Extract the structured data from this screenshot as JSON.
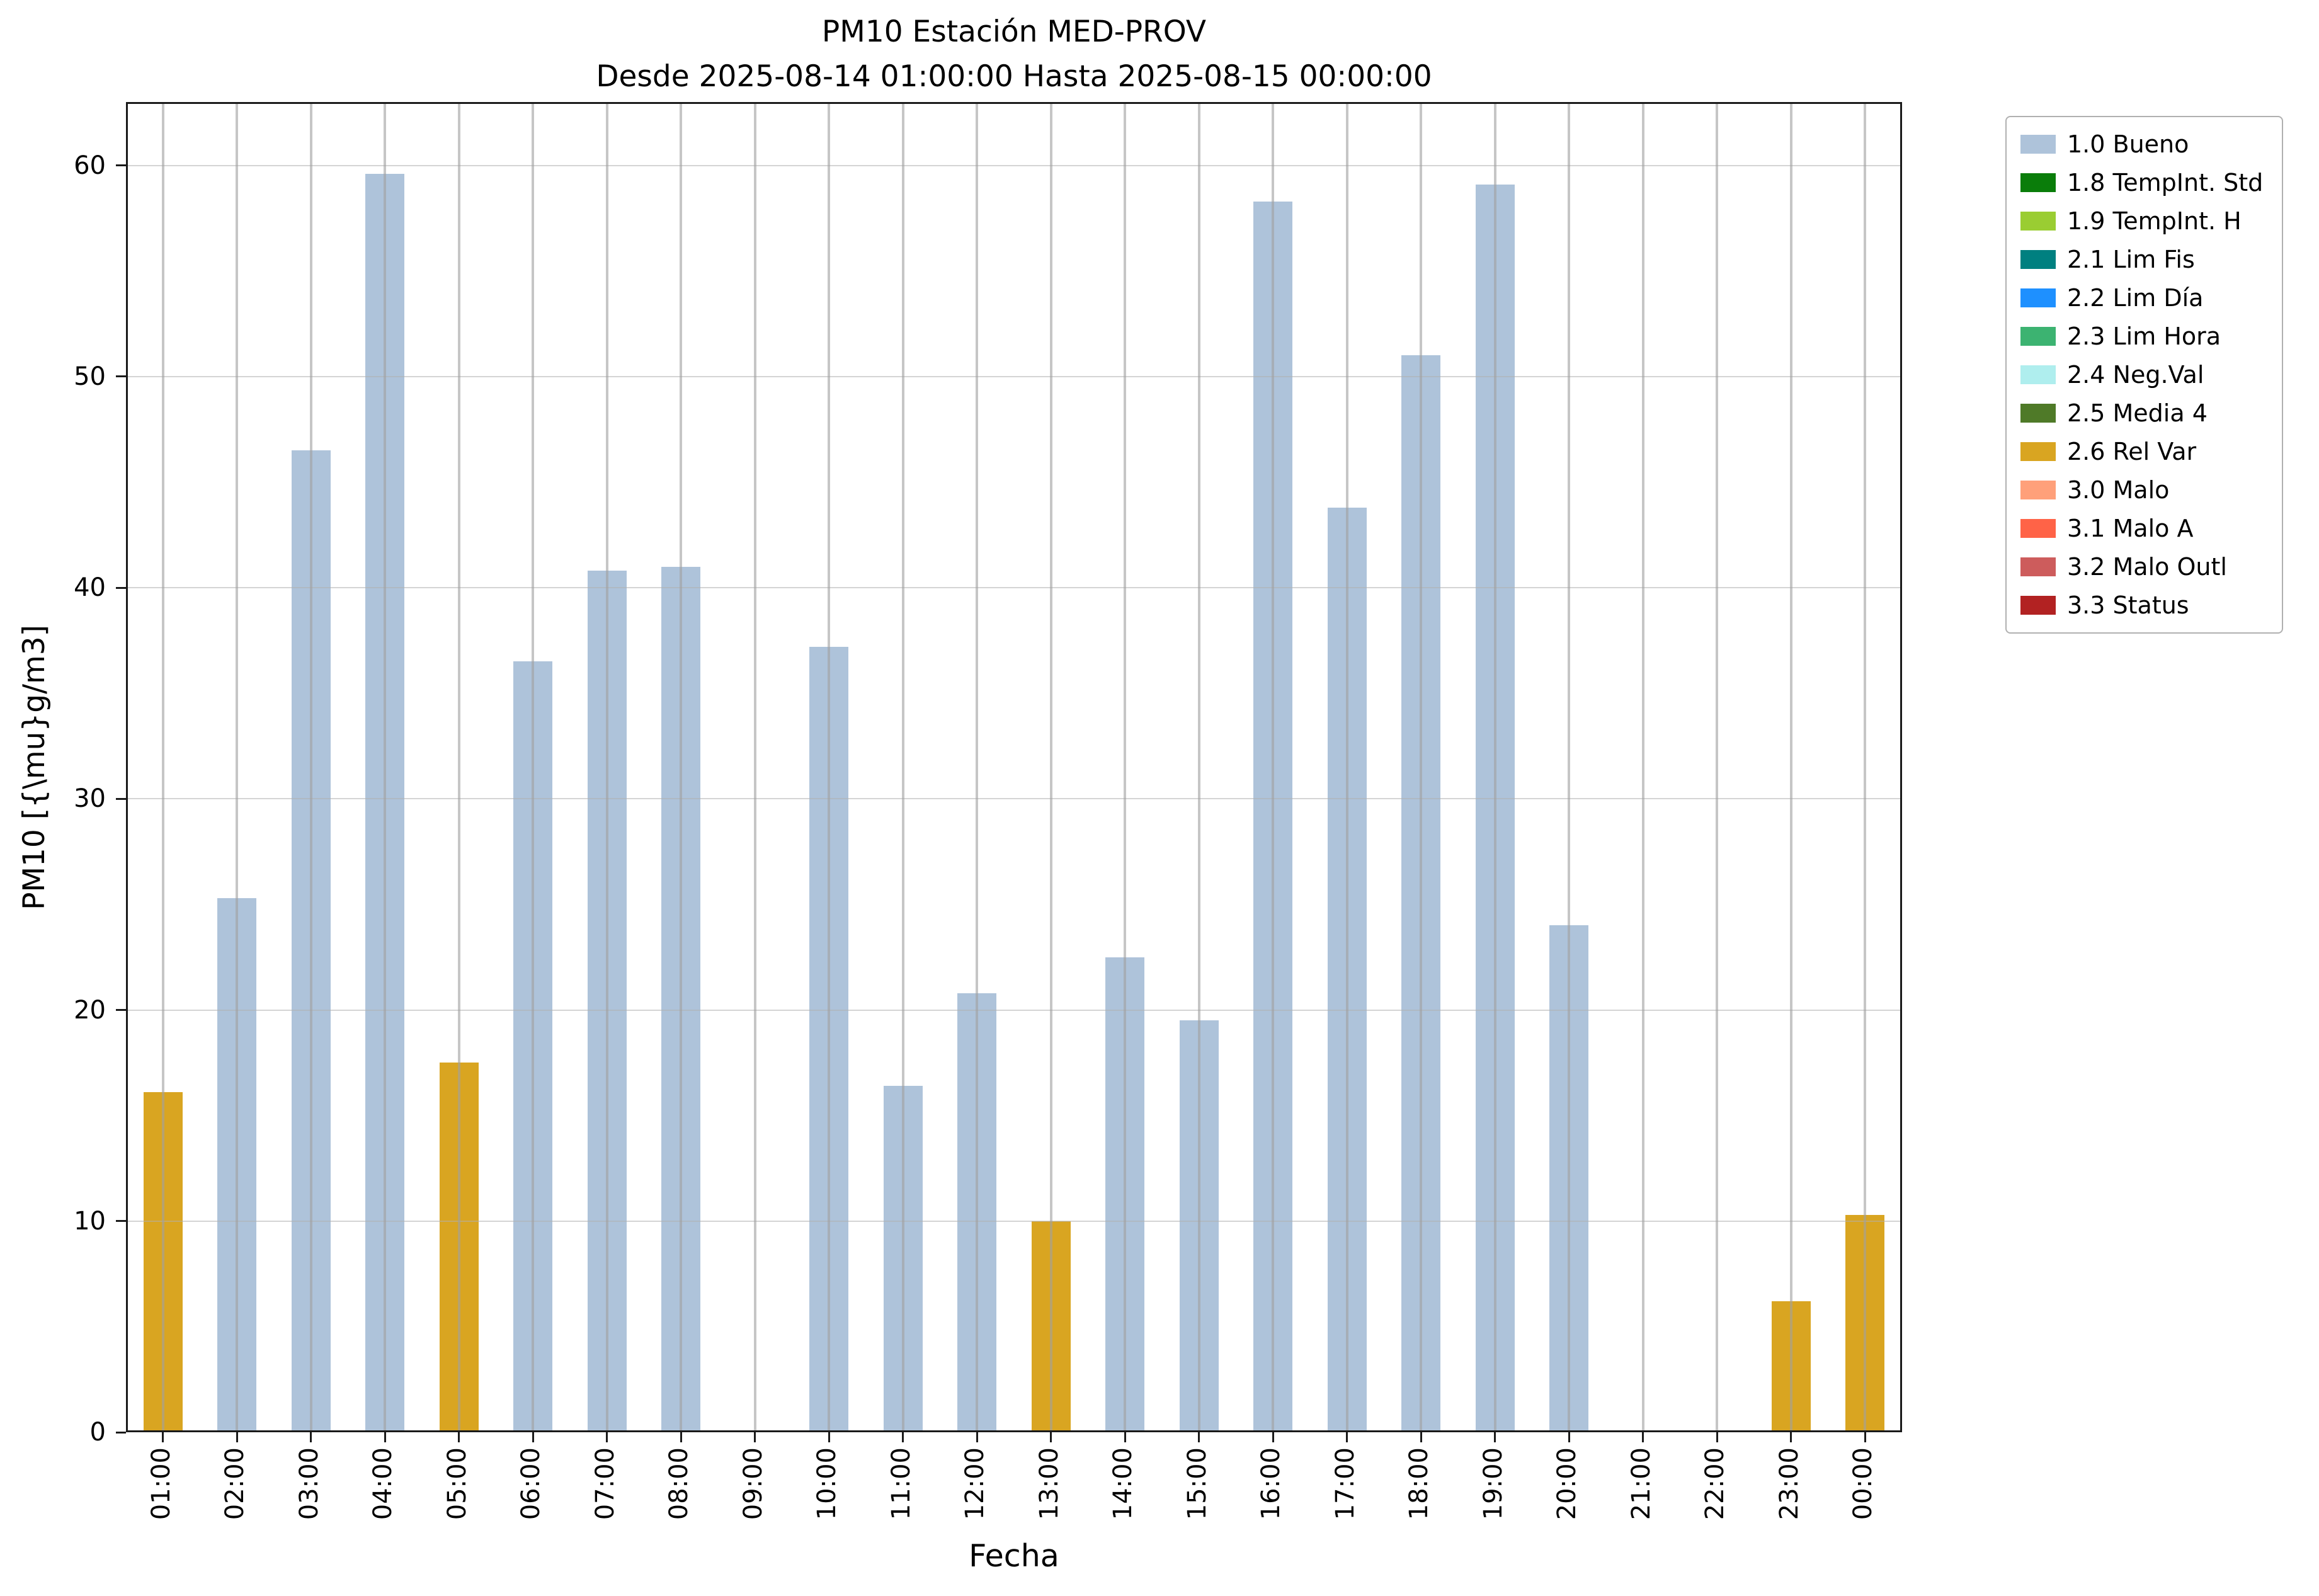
{
  "chart_data": {
    "type": "bar",
    "title": "PM10 Estación MED-PROV",
    "subtitle": "Desde 2025-08-14 01:00:00 Hasta 2025-08-15 00:00:00",
    "xlabel": "Fecha",
    "ylabel": "PM10 [{\\mu}g/m3]",
    "ylim": [
      0,
      63
    ],
    "yticks": [
      0,
      10,
      20,
      30,
      40,
      50,
      60
    ],
    "grid": "both",
    "legend_position": "outside-top-right",
    "categories": [
      "01:00",
      "02:00",
      "03:00",
      "04:00",
      "05:00",
      "06:00",
      "07:00",
      "08:00",
      "09:00",
      "10:00",
      "11:00",
      "12:00",
      "13:00",
      "14:00",
      "15:00",
      "16:00",
      "17:00",
      "18:00",
      "19:00",
      "20:00",
      "21:00",
      "22:00",
      "23:00",
      "00:00"
    ],
    "values": [
      16.1,
      25.3,
      46.5,
      59.6,
      17.5,
      36.5,
      40.8,
      41.0,
      0,
      37.2,
      16.4,
      20.8,
      10.0,
      22.5,
      19.5,
      58.3,
      43.8,
      51.0,
      59.1,
      24.0,
      0,
      0,
      6.2,
      10.3
    ],
    "statuses": [
      "2.6 Rel Var",
      "1.0 Bueno",
      "1.0 Bueno",
      "1.0 Bueno",
      "2.6 Rel Var",
      "1.0 Bueno",
      "1.0 Bueno",
      "1.0 Bueno",
      null,
      "1.0 Bueno",
      "1.0 Bueno",
      "1.0 Bueno",
      "2.6 Rel Var",
      "1.0 Bueno",
      "1.0 Bueno",
      "1.0 Bueno",
      "1.0 Bueno",
      "1.0 Bueno",
      "1.0 Bueno",
      "1.0 Bueno",
      null,
      null,
      "2.6 Rel Var",
      "2.6 Rel Var"
    ],
    "legend": [
      "1.0 Bueno",
      "1.8 TempInt. Std",
      "1.9 TempInt. H",
      "2.1 Lim Fis",
      "2.2 Lim Día",
      "2.3 Lim Hora",
      "2.4 Neg.Val",
      "2.5 Media 4",
      "2.6 Rel Var",
      "3.0 Malo",
      "3.1 Malo A",
      "3.2 Malo Outl",
      "3.3 Status"
    ],
    "colors": {
      "1.0 Bueno": "#aec3da",
      "1.8 TempInt. Std": "#0a7d0a",
      "1.9 TempInt. H": "#9acd32",
      "2.1 Lim Fis": "#008080",
      "2.2 Lim Día": "#1e90ff",
      "2.3 Lim Hora": "#3cb371",
      "2.4 Neg.Val": "#afeeee",
      "2.5 Media 4": "#4f7a28",
      "2.6 Rel Var": "#d9a521",
      "3.0 Malo": "#ffa07a",
      "3.1 Malo A": "#ff6347",
      "3.2 Malo Outl": "#cd5c5c",
      "3.3 Status": "#b22222"
    }
  }
}
